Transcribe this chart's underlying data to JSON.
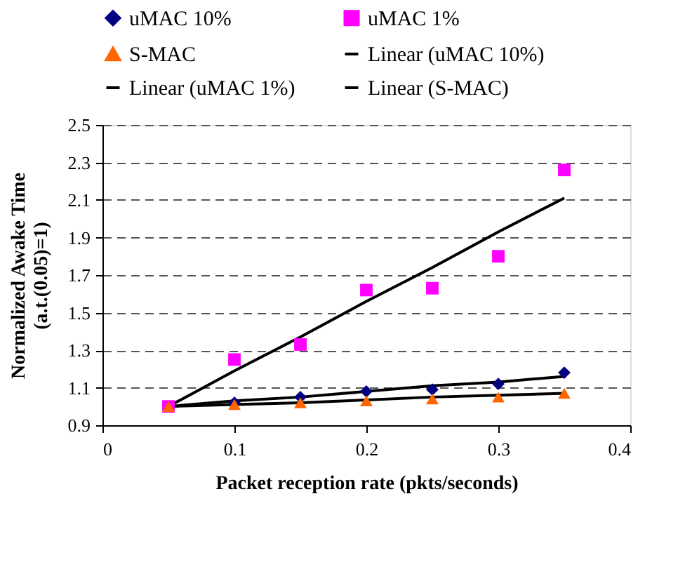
{
  "chart_data": {
    "type": "scatter",
    "xlabel": "Packet reception rate (pkts/seconds)",
    "ylabel": "Normalized Awake Time (a.t.(0.05)=1)",
    "x": [
      0.05,
      0.1,
      0.15,
      0.2,
      0.25,
      0.3,
      0.35
    ],
    "series": [
      {
        "name": "uMAC 10%",
        "color": "#000080",
        "marker": "diamond",
        "values": [
          null,
          1.02,
          1.05,
          1.08,
          1.09,
          1.12,
          1.18
        ]
      },
      {
        "name": "uMAC 1%",
        "color": "#ff00ff",
        "marker": "square",
        "values": [
          1.0,
          1.25,
          1.33,
          1.62,
          1.63,
          1.8,
          2.26
        ]
      },
      {
        "name": "S-MAC",
        "color": "#ff6600",
        "marker": "triangle",
        "values": [
          1.0,
          1.01,
          1.02,
          1.03,
          1.04,
          1.05,
          1.07
        ]
      },
      {
        "name": "Linear (uMAC 10%)",
        "type": "line",
        "color": "#000000",
        "marker": "none",
        "values": [
          1.0,
          1.03,
          1.05,
          1.08,
          1.11,
          1.13,
          1.16
        ]
      },
      {
        "name": "Linear (uMAC 1%)",
        "type": "line",
        "color": "#000000",
        "marker": "none",
        "values": [
          1.0,
          1.19,
          1.37,
          1.56,
          1.74,
          1.93,
          2.11
        ]
      },
      {
        "name": "Linear (S-MAC)",
        "type": "line",
        "color": "#000000",
        "marker": "none",
        "values": [
          1.0,
          1.01,
          1.02,
          1.035,
          1.05,
          1.06,
          1.07
        ]
      }
    ],
    "xlim": [
      0,
      0.4
    ],
    "xticks": [
      0,
      0.1,
      0.2,
      0.3,
      0.4
    ],
    "ylim": [
      0.9,
      2.5
    ],
    "yticks": [
      0.9,
      1.1,
      1.3,
      1.5,
      1.7,
      1.9,
      2.1,
      2.3,
      2.5
    ],
    "grid": "y",
    "legend": "top"
  }
}
